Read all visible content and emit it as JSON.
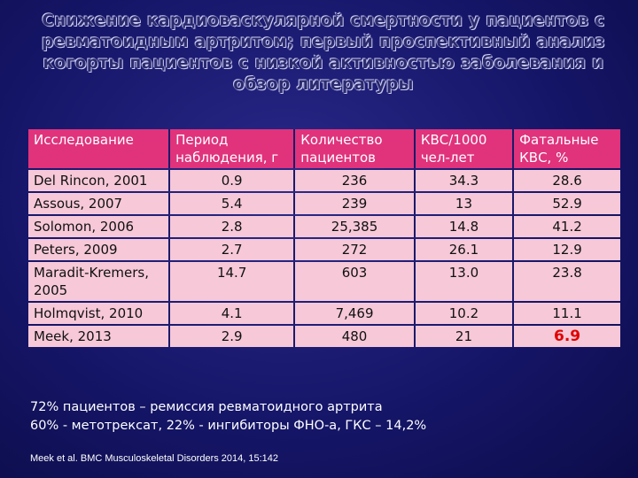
{
  "slide": {
    "title": "Снижение кардиоваскулярной смертности у пациентов с ревматоидным артритом; первый проспективный анализ когорты пациентов с низкой активностью заболевания и обзор литературы",
    "colors": {
      "background": "#1e1e78",
      "header": "#e0337c",
      "row": "#f6c8d8",
      "highlight": "#e00000"
    }
  },
  "table": {
    "headers": [
      "Исследование",
      "Период наблюдения, г",
      "Количество пациентов",
      "КВС/1000 чел-лет",
      "Фатальные КВС, %"
    ],
    "rows": [
      [
        "Del Rincon, 2001",
        "0.9",
        "236",
        "34.3",
        "28.6"
      ],
      [
        "Assous, 2007",
        "5.4",
        "239",
        "13",
        "52.9"
      ],
      [
        "Solomon, 2006",
        "2.8",
        "25,385",
        "14.8",
        "41.2"
      ],
      [
        "Peters, 2009",
        "2.7",
        "272",
        "26.1",
        "12.9"
      ],
      [
        "Maradit-Kremers, 2005",
        "14.7",
        "603",
        "13.0",
        "23.8"
      ],
      [
        "Holmqvist, 2010",
        "4.1",
        "7,469",
        "10.2",
        "11.1"
      ],
      [
        "Meek, 2013",
        "2.9",
        "480",
        "21",
        "6.9"
      ]
    ]
  },
  "notes": {
    "line1": "72% пациентов – ремиссия ревматоидного артрита",
    "line2": "60% - метотрексат, 22% - ингибиторы ФНО-а, ГКС – 14,2%"
  },
  "citation": "Meek et al. BMC Musculoskeletal Disorders 2014, 15:142"
}
